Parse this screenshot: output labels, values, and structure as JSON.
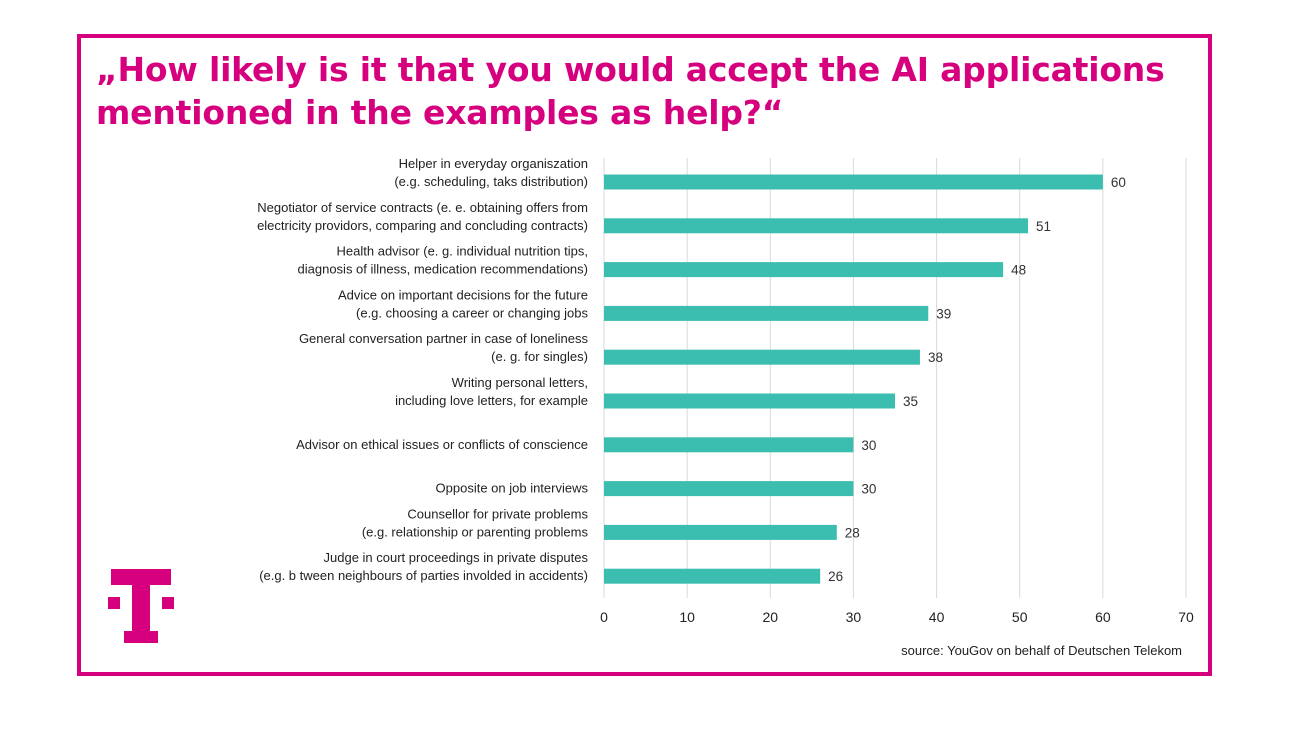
{
  "title_line1": "„How likely is it that you would accept the AI applications",
  "title_line2": "mentioned in the examples as help?“",
  "source": "source:  YouGov on behalf of Deutschen Telekom",
  "colors": {
    "brand": "#d6007e",
    "bar": "#3bbdaf",
    "grid": "#d9d9d9"
  },
  "logo_icon": "telekom-t-logo-icon",
  "chart_data": {
    "type": "bar",
    "orientation": "horizontal",
    "categories": [
      [
        "Helper in everyday organiszation",
        "(e.g. scheduling, taks distribution)"
      ],
      [
        "Negotiator of service contracts (e. e. obtaining offers from",
        "electricity providors, comparing and concluding contracts)"
      ],
      [
        "Health advisor (e. g. individual nutrition tips,",
        "diagnosis of illness, medication recommendations)"
      ],
      [
        "Advice on important decisions for the future",
        "(e.g. choosing a career or changing jobs"
      ],
      [
        "General conversation partner in case of loneliness",
        "(e. g. for singles)"
      ],
      [
        "Writing personal letters,",
        "including love letters, for example"
      ],
      [
        "Advisor on ethical issues or conflicts of conscience"
      ],
      [
        "Opposite on job interviews"
      ],
      [
        "Counsellor for private problems",
        "(e.g. relationship or parenting problems"
      ],
      [
        "Judge in court proceedings in private disputes",
        "(e.g. b tween neighbours of parties involded in accidents)"
      ]
    ],
    "values": [
      60,
      51,
      48,
      39,
      38,
      35,
      30,
      30,
      28,
      26
    ],
    "xlim": [
      0,
      70
    ],
    "xticks": [
      0,
      10,
      20,
      30,
      40,
      50,
      60,
      70
    ],
    "grid": true,
    "data_labels": true
  }
}
